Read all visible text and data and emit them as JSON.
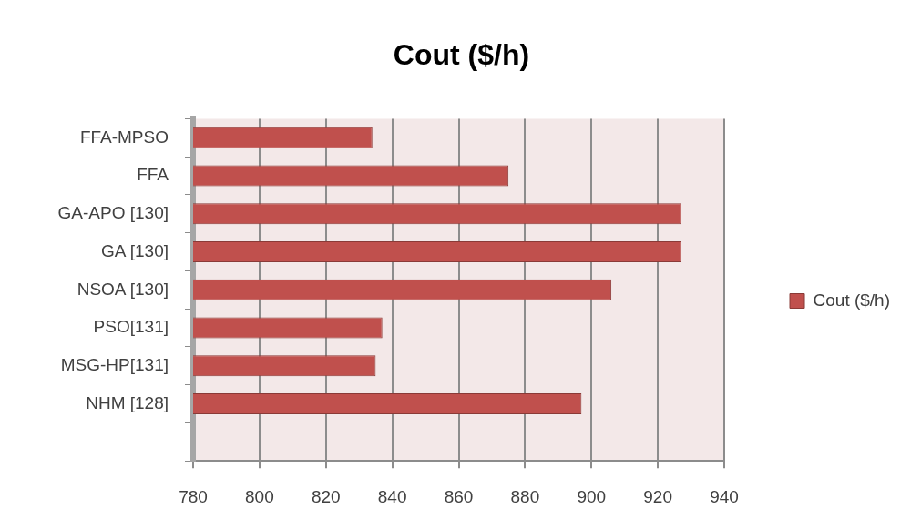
{
  "chart_data": {
    "type": "bar",
    "title": "Cout ($/h)",
    "orientation": "horizontal",
    "categories": [
      "FFA-MPSO",
      "FFA",
      "GA-APO [130]",
      "GA [130]",
      "NSOA [130]",
      "PSO[131]",
      "MSG-HP[131]",
      "NHM [128]",
      null
    ],
    "series": [
      {
        "name": "Cout ($/h)",
        "color": "#c0504d",
        "values": [
          834,
          875,
          927,
          927,
          906,
          837,
          835,
          897,
          null
        ]
      }
    ],
    "xlim": [
      780,
      940
    ],
    "xticks": [
      780,
      800,
      820,
      840,
      860,
      880,
      900,
      920,
      940
    ],
    "grid": "x",
    "legend": "right"
  }
}
